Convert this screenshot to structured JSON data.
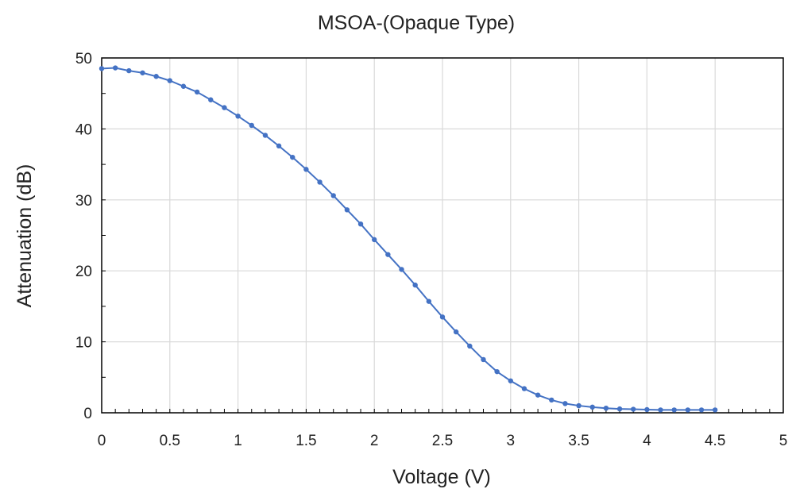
{
  "chart_data": {
    "type": "line",
    "title": "MSOA-(Opaque Type)",
    "xlabel": "Voltage (V)",
    "ylabel": "Attenuation (dB)",
    "xlim": [
      0,
      5
    ],
    "ylim": [
      0,
      50
    ],
    "x_ticks": [
      "0",
      "0.5",
      "1",
      "1.5",
      "2",
      "2.5",
      "3",
      "3.5",
      "4",
      "4.5",
      "5"
    ],
    "y_ticks": [
      "0",
      "10",
      "20",
      "30",
      "40",
      "50"
    ],
    "grid": true,
    "legend": "none",
    "series": [
      {
        "color": "#4472C4",
        "marker": "circle",
        "x": [
          0,
          0.1,
          0.2,
          0.3,
          0.4,
          0.5,
          0.6,
          0.7,
          0.8,
          0.9,
          1.0,
          1.1,
          1.2,
          1.3,
          1.4,
          1.5,
          1.6,
          1.7,
          1.8,
          1.9,
          2.0,
          2.1,
          2.2,
          2.3,
          2.4,
          2.5,
          2.6,
          2.7,
          2.8,
          2.9,
          3.0,
          3.1,
          3.2,
          3.3,
          3.4,
          3.5,
          3.6,
          3.7,
          3.8,
          3.9,
          4.0,
          4.1,
          4.2,
          4.3,
          4.4,
          4.5
        ],
        "y": [
          48.5,
          48.6,
          48.2,
          47.9,
          47.4,
          46.8,
          46.0,
          45.2,
          44.1,
          43.0,
          41.8,
          40.5,
          39.1,
          37.6,
          36.0,
          34.3,
          32.5,
          30.6,
          28.6,
          26.6,
          24.4,
          22.3,
          20.2,
          18.0,
          15.7,
          13.5,
          11.4,
          9.4,
          7.5,
          5.8,
          4.5,
          3.4,
          2.5,
          1.8,
          1.3,
          1.0,
          0.8,
          0.65,
          0.55,
          0.5,
          0.45,
          0.4,
          0.4,
          0.4,
          0.4,
          0.4
        ]
      }
    ]
  }
}
